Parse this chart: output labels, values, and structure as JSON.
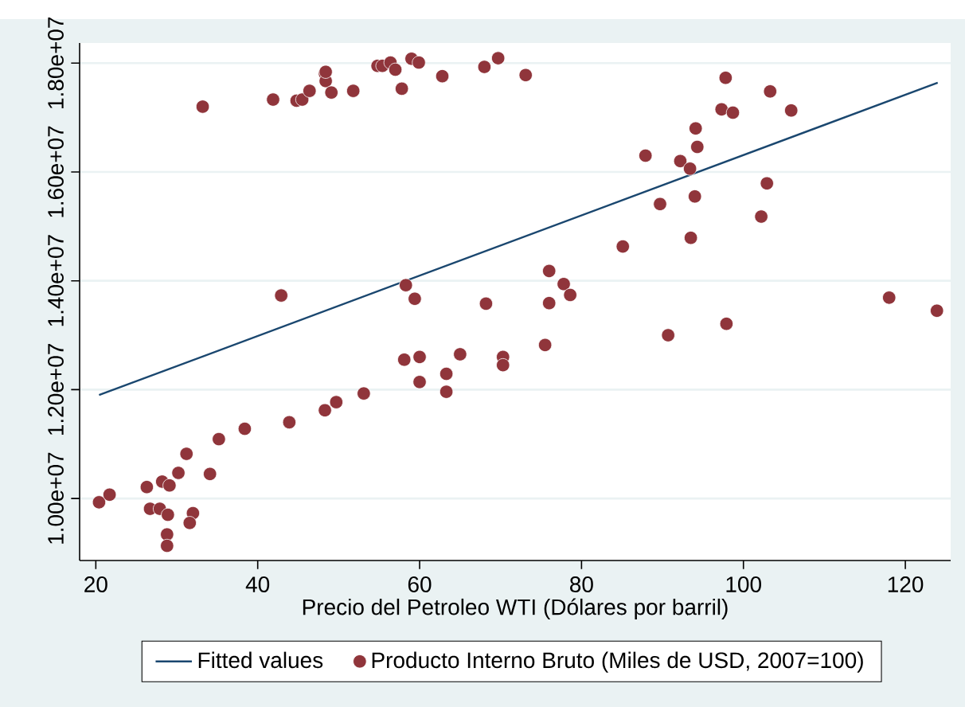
{
  "chart_data": {
    "type": "scatter",
    "xlabel": "Precio del Petroleo WTI (Dólares por barril)",
    "xlim": [
      18,
      125.6
    ],
    "xticks": [
      20,
      40,
      60,
      80,
      100,
      120
    ],
    "ylim": [
      8860000,
      18370000
    ],
    "yticks": [
      {
        "value": 10000000,
        "label": "1.00e+07"
      },
      {
        "value": 12000000,
        "label": "1.20e+07"
      },
      {
        "value": 14000000,
        "label": "1.40e+07"
      },
      {
        "value": 16000000,
        "label": "1.60e+07"
      },
      {
        "value": 18000000,
        "label": "1.80e+07"
      }
    ],
    "grid": "y",
    "legend": "bottom",
    "series": [
      {
        "name": "Fitted values",
        "type": "line",
        "color": "#1a476f",
        "marker": "none",
        "line_style": "solid",
        "x": [
          20.4,
          124
        ],
        "values": [
          11900000,
          17640000
        ]
      },
      {
        "name": "Producto Interno Bruto (Miles de USD, 2007=100)",
        "color": "#90353b",
        "marker": "circle",
        "x": [
          33.2,
          41.9,
          44.8,
          45.5,
          46.4,
          48.3,
          48.4,
          48.4,
          49.1,
          51.8,
          54.8,
          55.4,
          56.4,
          57.0,
          57.8,
          59.0,
          59.9,
          62.8,
          68.0,
          69.7,
          73.1,
          97.8,
          97.3,
          98.7,
          103.3,
          105.9,
          94.1,
          94.3,
          87.9,
          92.2,
          93.4,
          102.9,
          94.0,
          89.7,
          102.2,
          93.5,
          85.1,
          76.0,
          77.8,
          78.6,
          68.2,
          76.0,
          118.0,
          123.9,
          90.7,
          97.9,
          75.5,
          70.3,
          70.3,
          42.9,
          58.3,
          59.4,
          58.1,
          60.0,
          65.0,
          63.3,
          60.0,
          63.3,
          53.1,
          49.7,
          48.3,
          43.9,
          38.4,
          35.2,
          31.2,
          30.2,
          34.1,
          26.3,
          28.2,
          29.1,
          20.4,
          21.7,
          26.7,
          27.9,
          28.9,
          32.0,
          31.6,
          28.8,
          28.8
        ],
        "values": [
          17200000,
          17330000,
          17310000,
          17330000,
          17490000,
          17810000,
          17670000,
          17840000,
          17460000,
          17490000,
          17950000,
          17950000,
          18010000,
          17880000,
          17530000,
          18080000,
          18010000,
          17760000,
          17930000,
          18090000,
          17780000,
          17730000,
          17150000,
          17090000,
          17480000,
          17130000,
          16800000,
          16460000,
          16300000,
          16200000,
          16060000,
          15790000,
          15550000,
          15410000,
          15180000,
          14790000,
          14630000,
          14180000,
          13940000,
          13740000,
          13580000,
          13590000,
          13690000,
          13450000,
          13000000,
          13210000,
          12820000,
          12600000,
          12450000,
          13730000,
          13920000,
          13670000,
          12550000,
          12600000,
          12650000,
          12290000,
          12140000,
          11960000,
          11930000,
          11770000,
          11620000,
          11400000,
          11280000,
          11090000,
          10820000,
          10470000,
          10450000,
          10210000,
          10310000,
          10240000,
          9930000,
          10070000,
          9810000,
          9810000,
          9700000,
          9730000,
          9550000,
          9340000,
          9130000
        ]
      }
    ]
  }
}
